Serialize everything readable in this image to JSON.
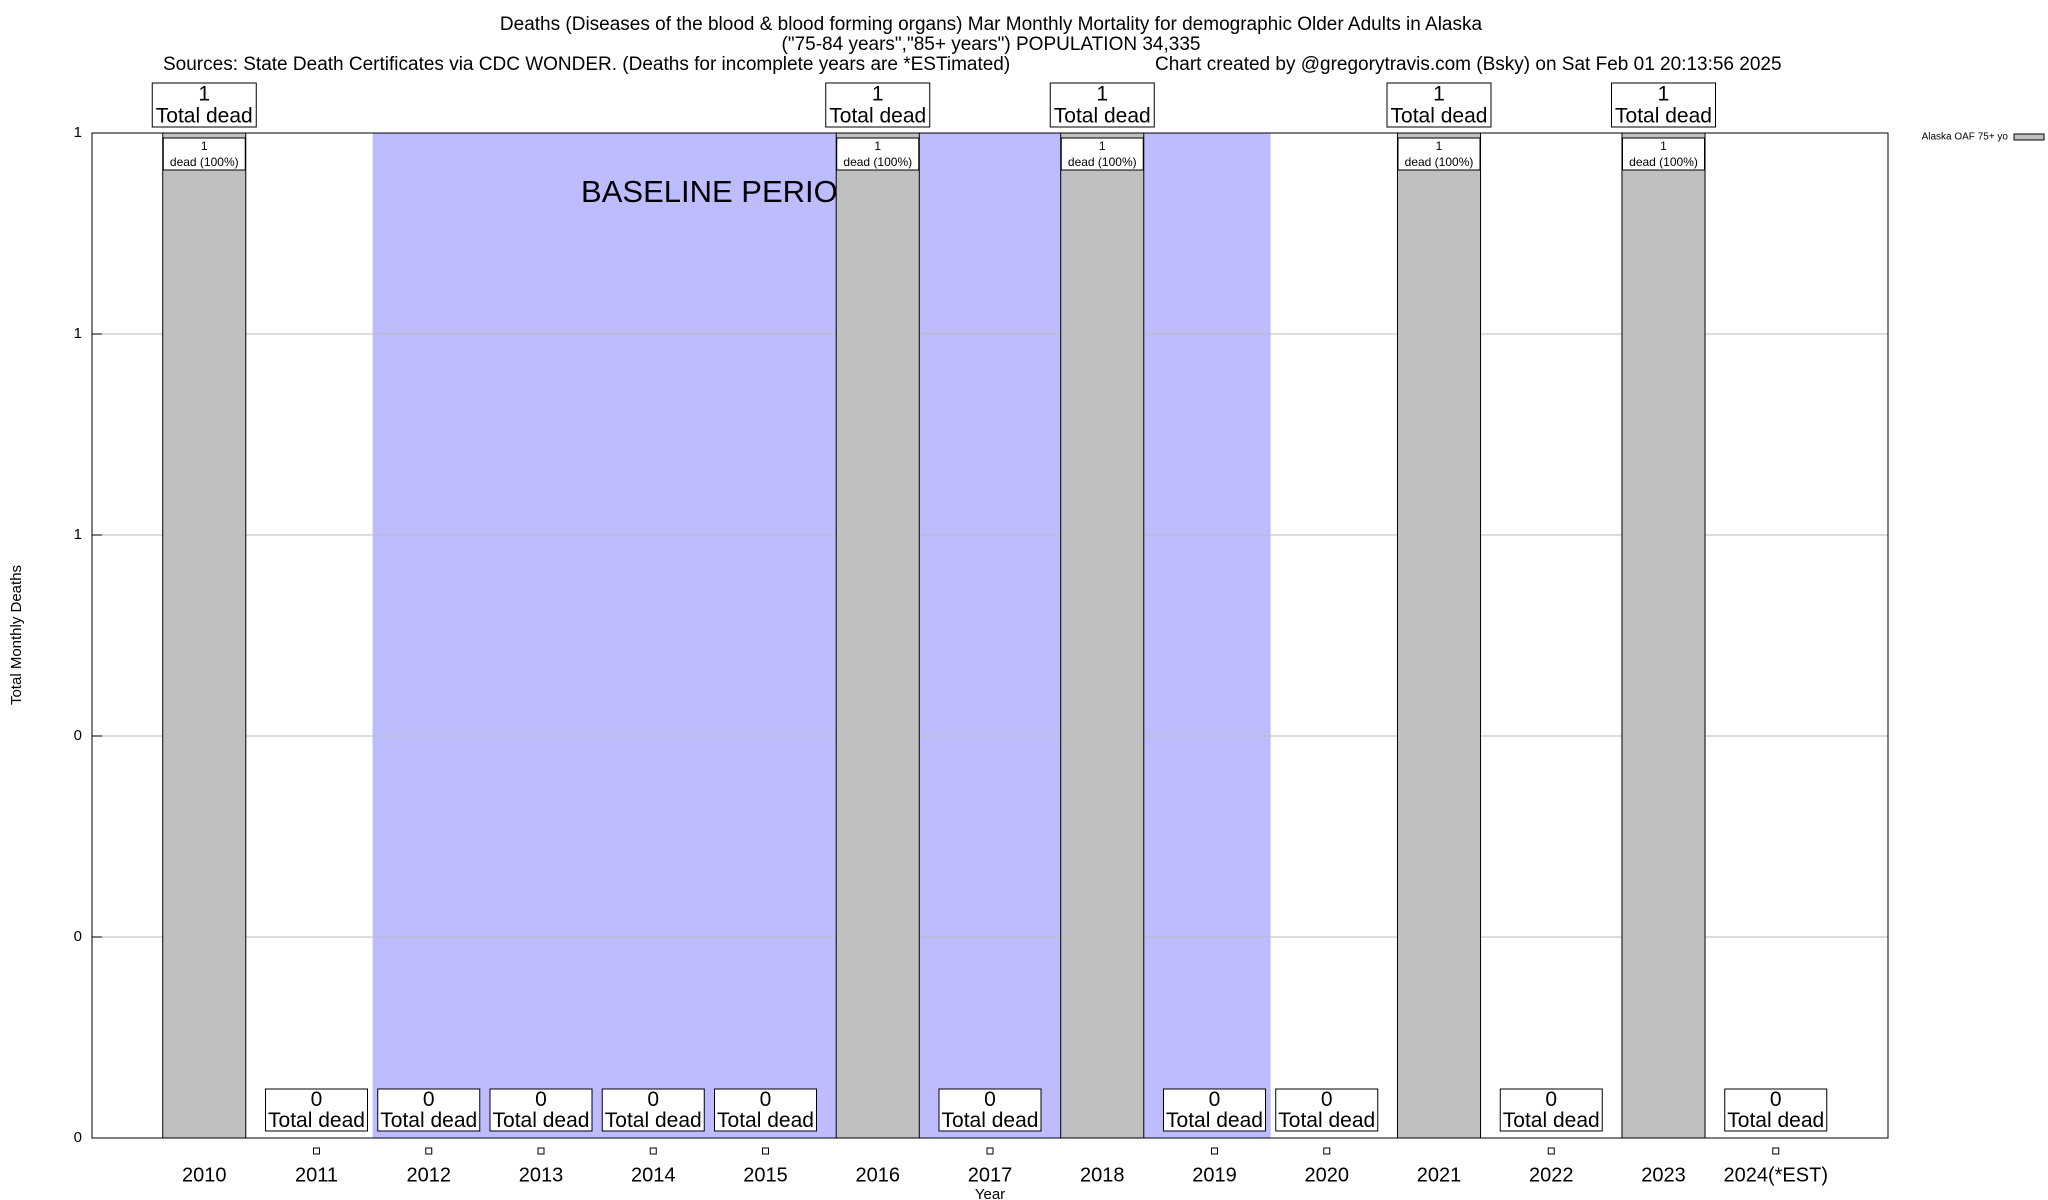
{
  "chart_data": {
    "type": "bar",
    "title": "Deaths (Diseases of the blood & blood forming organs) Mar Monthly Mortality for demographic Older Adults in Alaska",
    "subtitle": "(\"75-84 years\",\"85+ years\") POPULATION 34,335",
    "sources": "Sources: State Death Certificates via CDC WONDER. (Deaths for incomplete years are *ESTimated)",
    "credit": "Chart created by @gregorytravis.com (Bsky) on Sat Feb 01 20:13:56 2025",
    "x_label": "Year",
    "y_label": "Total Monthly Deaths",
    "categories": [
      "2010",
      "2011",
      "2012",
      "2013",
      "2014",
      "2015",
      "2016",
      "2017",
      "2018",
      "2019",
      "2020",
      "2021",
      "2022",
      "2023",
      "2024(*EST)"
    ],
    "series": [
      {
        "name": "Alaska OAF 75+ yo",
        "color": "#c0c0c0",
        "values": [
          1,
          0,
          0,
          0,
          0,
          0,
          1,
          0,
          1,
          0,
          0,
          1,
          0,
          1,
          0
        ],
        "share_labels": [
          "dead (100%)",
          null,
          null,
          null,
          null,
          null,
          "dead (100%)",
          null,
          "dead (100%)",
          null,
          null,
          "dead (100%)",
          null,
          "dead (100%)",
          null
        ]
      }
    ],
    "total_label": "Total dead",
    "baseline": {
      "label": "BASELINE PERIOD",
      "start": "2012",
      "end": "2019",
      "color": "#bcbcff"
    },
    "ylim": [
      0,
      1
    ],
    "yticks": [
      0,
      {
        "value": 0.2,
        "label": "0"
      },
      {
        "value": 0.4,
        "label": "0"
      },
      {
        "value": 0.6,
        "label": "1"
      },
      {
        "value": 0.8,
        "label": "1"
      },
      {
        "value": 1,
        "label": "1"
      }
    ],
    "grid": true,
    "legend": "top-right"
  }
}
